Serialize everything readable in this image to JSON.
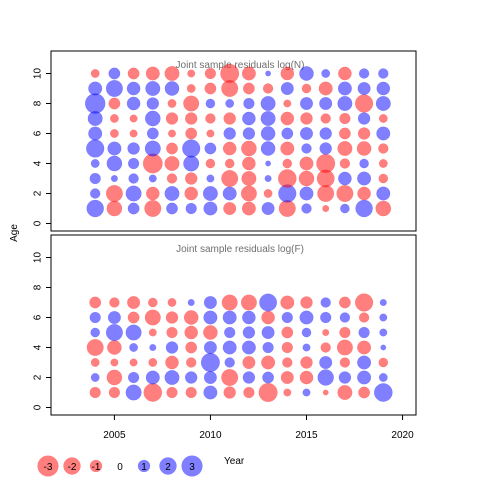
{
  "chart_data": {
    "type": "scatter",
    "subtype": "bubble",
    "x_label": "Year",
    "y_label": "Age",
    "x_ticks": [
      "2005",
      "2010",
      "2015",
      "2020"
    ],
    "x_tick_values": [
      2005,
      2010,
      2015,
      2020
    ],
    "xlim": [
      2001.7,
      2020.7
    ],
    "y_ticks": [
      "0",
      "2",
      "4",
      "6",
      "8",
      "10"
    ],
    "y_tick_values": [
      0,
      2,
      4,
      6,
      8,
      10
    ],
    "ylim": [
      -0.5,
      11.5
    ],
    "years": [
      2004,
      2005,
      2006,
      2007,
      2008,
      2009,
      2010,
      2011,
      2012,
      2013,
      2014,
      2015,
      2016,
      2017,
      2018,
      2019
    ],
    "positive_color": "#0000ff",
    "negative_color": "#ff0000",
    "legend": {
      "values": [
        -3,
        -2,
        -1,
        0,
        1,
        2,
        3
      ],
      "labels": [
        "-3",
        "-2",
        "-1",
        "0",
        "1",
        "2",
        "3"
      ]
    },
    "panels": [
      {
        "title": "Joint sample residuals log(N)",
        "ages": [
          1,
          2,
          3,
          4,
          5,
          6,
          7,
          8,
          9,
          10
        ],
        "residuals": [
          [
            2.0,
            -1.6,
            0.9,
            -1.9,
            0.9,
            0.8,
            1.3,
            -1.1,
            -1.3,
            1.1,
            -1.9,
            0.7,
            -0.3,
            0.6,
            2.0,
            -1.6
          ],
          [
            0.7,
            -1.9,
            1.7,
            -1.2,
            1.5,
            -1.2,
            1.5,
            1.3,
            -1.7,
            -0.5,
            2.2,
            1.3,
            -1.9,
            -1.9,
            -1.2,
            1.3
          ],
          [
            0.8,
            0.3,
            0.7,
            0.4,
            -0.7,
            -1.0,
            0.4,
            -1.9,
            -1.5,
            0.3,
            -2.3,
            -1.6,
            -2.1,
            1.2,
            1.3,
            -0.6
          ],
          [
            0.5,
            1.6,
            0.8,
            -2.6,
            -1.5,
            1.7,
            -0.6,
            -0.6,
            -1.2,
            0.2,
            -0.6,
            -1.3,
            -2.4,
            -0.7,
            0.6,
            -0.5
          ],
          [
            2.2,
            1.3,
            1.0,
            1.7,
            -0.9,
            2.2,
            0.9,
            -1.2,
            -1.6,
            1.4,
            -1.3,
            0.7,
            1.0,
            -1.5,
            -1.4,
            -0.7
          ],
          [
            1.3,
            -0.5,
            -0.4,
            0.9,
            -0.4,
            -0.9,
            -0.4,
            1.0,
            1.0,
            1.4,
            0.9,
            1.1,
            1.0,
            -0.9,
            -1.0,
            1.3
          ],
          [
            1.5,
            -0.5,
            -0.4,
            1.6,
            -1.0,
            -1.0,
            -0.7,
            -1.0,
            1.2,
            1.5,
            -1.2,
            -1.0,
            -0.7,
            -0.8,
            1.0,
            -0.5
          ],
          [
            2.8,
            -0.9,
            1.2,
            1.0,
            -0.5,
            -1.7,
            0.6,
            0.5,
            0.8,
            1.5,
            -0.4,
            1.1,
            1.1,
            1.5,
            -2.2,
            1.5
          ],
          [
            1.3,
            1.9,
            1.2,
            1.5,
            1.4,
            -0.5,
            -0.9,
            -1.9,
            -0.9,
            -0.7,
            1.1,
            -0.6,
            -1.3,
            1.3,
            1.1,
            1.2
          ],
          [
            -0.5,
            0.9,
            -0.9,
            -1.3,
            -1.5,
            -0.4,
            -0.8,
            -2.4,
            -1.3,
            0.2,
            -1.2,
            1.4,
            0.5,
            -1.2,
            0.7,
            0.7
          ]
        ]
      },
      {
        "title": "Joint sample residuals log(F)",
        "ages": [
          1,
          2,
          3,
          4,
          5,
          6,
          7
        ],
        "residuals": [
          [
            -0.8,
            -0.8,
            1.7,
            -2.3,
            -0.8,
            -0.8,
            1.3,
            -1.0,
            -0.8,
            -2.4,
            -0.4,
            0.4,
            -0.2,
            -1.5,
            -0.9,
            2.3
          ],
          [
            0.5,
            -1.6,
            0.8,
            1.3,
            1.5,
            1.0,
            1.1,
            -1.9,
            1.0,
            0.9,
            -1.1,
            -1.2,
            1.8,
            1.0,
            1.3,
            0.5
          ],
          [
            -0.5,
            -0.4,
            -0.4,
            -0.5,
            -1.2,
            -0.7,
            2.4,
            0.7,
            -1.1,
            -1.3,
            -0.7,
            -1.0,
            1.1,
            -0.7,
            1.3,
            -0.6
          ],
          [
            -1.9,
            -1.4,
            0.5,
            0.3,
            1.0,
            -0.9,
            1.1,
            1.3,
            1.3,
            0.8,
            -0.8,
            0.4,
            -0.7,
            -1.7,
            -1.3,
            0.2
          ],
          [
            0.6,
            1.9,
            1.7,
            -0.4,
            -0.8,
            -1.2,
            -1.4,
            0.8,
            1.0,
            1.1,
            -0.9,
            0.6,
            -0.3,
            -0.8,
            0.8,
            0.4
          ],
          [
            0.8,
            1.1,
            -0.9,
            -1.7,
            -1.0,
            -1.4,
            1.3,
            1.3,
            1.2,
            -1.2,
            0.8,
            1.3,
            0.8,
            0.7,
            -0.7,
            0.4
          ],
          [
            -0.9,
            -0.7,
            -1.1,
            -0.6,
            -0.5,
            0.3,
            1.1,
            -1.7,
            -1.7,
            2.1,
            -1.3,
            -1.0,
            0.7,
            -0.9,
            -2.2,
            0.3
          ]
        ]
      }
    ]
  }
}
